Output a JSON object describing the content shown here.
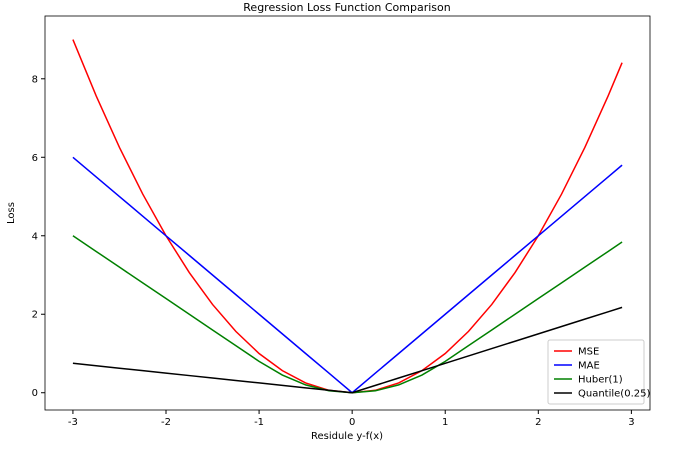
{
  "chart_data": {
    "type": "line",
    "title": "Regression Loss Function Comparison",
    "xlabel": "Residule y-f(x)",
    "ylabel": "Loss",
    "x": [
      -3,
      -2.75,
      -2.5,
      -2.25,
      -2,
      -1.75,
      -1.5,
      -1.25,
      -1,
      -0.75,
      -0.5,
      -0.25,
      0,
      0.25,
      0.5,
      0.75,
      1,
      1.25,
      1.5,
      1.75,
      2,
      2.25,
      2.5,
      2.75,
      2.9
    ],
    "series": [
      {
        "name": "MSE",
        "color": "#ff0000",
        "values": [
          9,
          7.5625,
          6.25,
          5.0625,
          4,
          3.0625,
          2.25,
          1.5625,
          1,
          0.5625,
          0.25,
          0.0625,
          0,
          0.0625,
          0.25,
          0.5625,
          1,
          1.5625,
          2.25,
          3.0625,
          4,
          5.0625,
          6.25,
          7.5625,
          8.41
        ]
      },
      {
        "name": "MAE",
        "color": "#0000ff",
        "values": [
          6,
          5.5,
          5,
          4.5,
          4,
          3.5,
          3,
          2.5,
          2,
          1.5,
          1,
          0.5,
          0,
          0.5,
          1,
          1.5,
          2,
          2.5,
          3,
          3.5,
          4,
          4.5,
          5,
          5.5,
          5.8
        ]
      },
      {
        "name": "Huber(1)",
        "color": "#008000",
        "values": [
          4,
          3.6,
          3.2,
          2.8,
          2.4,
          2.0,
          1.6,
          1.2,
          0.8,
          0.45,
          0.2,
          0.05,
          0,
          0.05,
          0.2,
          0.45,
          0.8,
          1.2,
          1.6,
          2.0,
          2.4,
          2.8,
          3.2,
          3.6,
          3.84
        ]
      },
      {
        "name": "Quantile(0.25)",
        "color": "#000000",
        "values": [
          0.75,
          0.6875,
          0.625,
          0.5625,
          0.5,
          0.4375,
          0.375,
          0.3125,
          0.25,
          0.1875,
          0.125,
          0.0625,
          0,
          0.1875,
          0.375,
          0.5625,
          0.75,
          0.9375,
          1.125,
          1.3125,
          1.5,
          1.6875,
          1.875,
          2.0625,
          2.175
        ]
      }
    ],
    "xlim": [
      -3.3,
      3.2
    ],
    "ylim": [
      -0.44,
      9.6
    ],
    "xticks": [
      -3,
      -2,
      -1,
      0,
      1,
      2,
      3
    ],
    "yticks": [
      0,
      2,
      4,
      6,
      8
    ],
    "grid": false,
    "legend": "lower right"
  }
}
